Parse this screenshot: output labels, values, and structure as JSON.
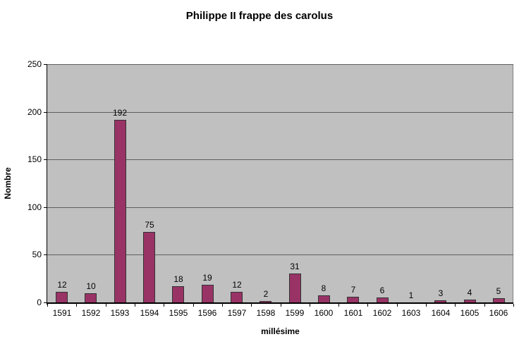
{
  "chart": {
    "title": "Philippe II frappe des carolus",
    "x_axis_title": "millésime",
    "y_axis_title": "Nombre"
  },
  "chart_data": {
    "type": "bar",
    "title": "Philippe II frappe des carolus",
    "xlabel": "millésime",
    "ylabel": "Nombre",
    "categories": [
      "1591",
      "1592",
      "1593",
      "1594",
      "1595",
      "1596",
      "1597",
      "1598",
      "1599",
      "1600",
      "1601",
      "1602",
      "1603",
      "1604",
      "1605",
      "1606"
    ],
    "values": [
      12,
      10,
      192,
      75,
      18,
      19,
      12,
      2,
      31,
      8,
      7,
      6,
      1,
      3,
      4,
      5
    ],
    "ylim": [
      0,
      250
    ],
    "yticks": [
      0,
      50,
      100,
      150,
      200,
      250
    ],
    "grid": true,
    "legend_position": "none",
    "data_labels": true,
    "colors": {
      "bar_fill": "#993366",
      "bar_border": "#333333",
      "plot_background": "#c0c0c0",
      "gridline": "#5f5f5f",
      "axis_line": "#000000",
      "text": "#000000",
      "chart_background": "#ffffff"
    }
  }
}
